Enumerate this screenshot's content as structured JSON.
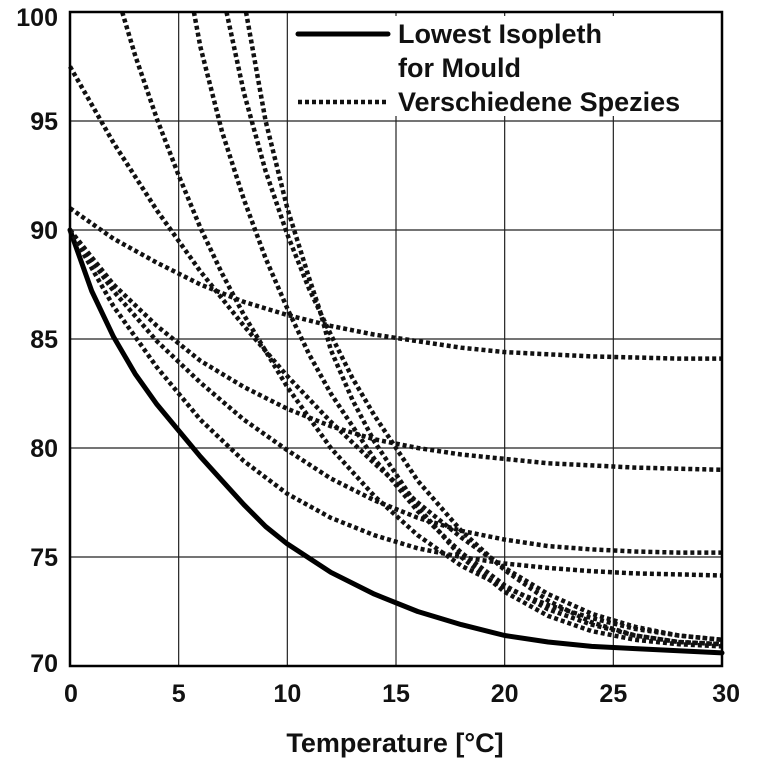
{
  "chart_data": {
    "type": "line",
    "title": "",
    "xlabel": "Temperature [°C]",
    "ylabel": "",
    "xlim": [
      0,
      30
    ],
    "ylim": [
      70,
      100
    ],
    "x_ticks": [
      0,
      5,
      10,
      15,
      20,
      25,
      30
    ],
    "y_ticks": [
      70,
      75,
      80,
      85,
      90,
      95,
      100
    ],
    "grid": true,
    "legend_position": "top-right",
    "legend": [
      {
        "label_lines": [
          "Lowest Isopleth",
          "for Mould"
        ],
        "style": "solid"
      },
      {
        "label_lines": [
          "Verschiedene Spezies"
        ],
        "style": "dotted"
      }
    ],
    "series": [
      {
        "legend_index": 0,
        "style": "solid",
        "x": [
          0,
          1,
          2,
          3,
          4,
          5,
          6,
          7,
          8,
          9,
          10,
          12,
          14,
          16,
          18,
          20,
          22,
          24,
          26,
          28,
          30
        ],
        "y": [
          90,
          87.2,
          85.1,
          83.4,
          82.0,
          80.8,
          79.6,
          78.5,
          77.4,
          76.4,
          75.6,
          74.3,
          73.3,
          72.5,
          71.9,
          71.4,
          71.1,
          70.9,
          70.8,
          70.7,
          70.6
        ]
      },
      {
        "legend_index": 1,
        "style": "dotted",
        "x": [
          0,
          2,
          4,
          6,
          8,
          10,
          12,
          14,
          16,
          18,
          20,
          22,
          24,
          26,
          28,
          30
        ],
        "y": [
          91,
          89.6,
          88.5,
          87.5,
          86.7,
          86.1,
          85.6,
          85.2,
          84.9,
          84.6,
          84.4,
          84.3,
          84.2,
          84.15,
          84.1,
          84.1
        ]
      },
      {
        "legend_index": 1,
        "style": "dotted",
        "x": [
          0,
          2,
          4,
          6,
          8,
          10,
          12,
          14,
          16,
          18,
          20,
          22,
          24,
          26,
          28,
          30
        ],
        "y": [
          90,
          87.5,
          85.6,
          84.0,
          82.8,
          81.8,
          81.0,
          80.4,
          80.0,
          79.7,
          79.5,
          79.3,
          79.2,
          79.1,
          79.05,
          79.0
        ]
      },
      {
        "legend_index": 1,
        "style": "dotted",
        "x": [
          0,
          2,
          4,
          6,
          8,
          10,
          12,
          14,
          16,
          18,
          20,
          22,
          24,
          26,
          28,
          30
        ],
        "y": [
          90,
          87.2,
          84.9,
          83.0,
          81.3,
          79.9,
          78.6,
          77.6,
          76.8,
          76.2,
          75.8,
          75.5,
          75.35,
          75.25,
          75.2,
          75.2
        ]
      },
      {
        "legend_index": 1,
        "style": "dotted",
        "x": [
          0,
          2,
          4,
          6,
          8,
          10,
          12,
          14,
          16,
          18,
          20,
          22,
          24,
          26,
          28,
          30
        ],
        "y": [
          90,
          86.5,
          83.7,
          81.3,
          79.4,
          77.9,
          76.8,
          76.0,
          75.4,
          75.0,
          74.7,
          74.5,
          74.35,
          74.25,
          74.2,
          74.15
        ]
      },
      {
        "legend_index": 1,
        "style": "dotted",
        "x": [
          0,
          2,
          4,
          6,
          8,
          10,
          12,
          14,
          16,
          18,
          20,
          22,
          24,
          26,
          28,
          30
        ],
        "y": [
          97.5,
          94.0,
          90.9,
          88.1,
          85.6,
          83.3,
          81.2,
          79.3,
          77.5,
          75.9,
          74.5,
          73.3,
          72.4,
          71.8,
          71.4,
          71.2
        ]
      },
      {
        "legend_index": 1,
        "style": "dotted",
        "x": [
          2.4,
          3,
          4,
          5,
          6,
          7,
          8,
          10,
          12,
          14,
          16,
          18,
          20,
          22,
          24,
          26,
          28,
          30
        ],
        "y": [
          100,
          98.0,
          95.1,
          92.5,
          90.1,
          88.0,
          86.1,
          82.8,
          80.0,
          77.8,
          76.0,
          74.6,
          73.6,
          72.8,
          72.2,
          71.7,
          71.4,
          71.2
        ]
      },
      {
        "legend_index": 1,
        "style": "dotted",
        "x": [
          5.7,
          6,
          7,
          8,
          9,
          10,
          11,
          12,
          14,
          16,
          18,
          20,
          22,
          24,
          26,
          28,
          30
        ],
        "y": [
          100,
          98.4,
          94.5,
          91.4,
          88.7,
          86.4,
          84.3,
          82.5,
          79.5,
          77.1,
          75.2,
          73.7,
          72.6,
          71.9,
          71.4,
          71.1,
          71.0
        ]
      },
      {
        "legend_index": 1,
        "style": "dotted",
        "x": [
          7.2,
          8,
          9,
          10,
          11,
          12,
          13,
          14,
          16,
          18,
          20,
          22,
          24,
          26,
          28,
          30
        ],
        "y": [
          100,
          96.3,
          92.7,
          89.8,
          87.3,
          85.2,
          83.2,
          81.5,
          78.5,
          76.2,
          74.4,
          73.0,
          72.0,
          71.4,
          71.1,
          71.0
        ]
      },
      {
        "legend_index": 1,
        "style": "dotted",
        "x": [
          8.1,
          9,
          10,
          11,
          11.5,
          12,
          13,
          14,
          16,
          18,
          20,
          22,
          24,
          26,
          28,
          30
        ],
        "y": [
          100,
          95.0,
          91.0,
          87.8,
          86.3,
          84.5,
          82.2,
          80.3,
          77.3,
          75.0,
          73.4,
          72.3,
          71.6,
          71.2,
          71.0,
          70.9
        ]
      }
    ]
  }
}
